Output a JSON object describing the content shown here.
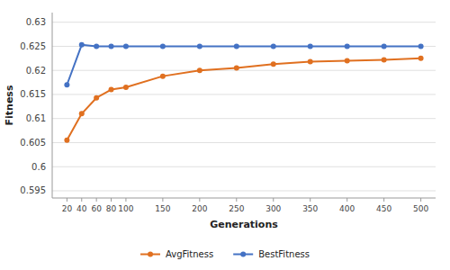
{
  "chart_data": {
    "type": "line",
    "x": [
      20,
      40,
      60,
      80,
      100,
      150,
      200,
      250,
      300,
      350,
      400,
      450,
      500
    ],
    "series": [
      {
        "name": "AvgFitness",
        "color": "#E07020",
        "marker": "circle",
        "values": [
          0.6055,
          0.611,
          0.6143,
          0.616,
          0.6165,
          0.6188,
          0.62,
          0.6205,
          0.6213,
          0.6218,
          0.622,
          0.6222,
          0.6225
        ]
      },
      {
        "name": "BestFitness",
        "color": "#4472C4",
        "marker": "circle",
        "values": [
          0.617,
          0.6253,
          0.625,
          0.625,
          0.625,
          0.625,
          0.625,
          0.625,
          0.625,
          0.625,
          0.625,
          0.625,
          0.625
        ]
      }
    ],
    "x_label": "Generations",
    "y_label": "Fitness",
    "xlim": [
      0,
      520
    ],
    "xticks": [
      20,
      40,
      60,
      80,
      100,
      150,
      200,
      250,
      300,
      350,
      400,
      450,
      500
    ],
    "ylim": [
      0.5935,
      0.632
    ],
    "yticks": [
      0.595,
      0.6,
      0.605,
      0.61,
      0.615,
      0.62,
      0.625,
      0.63
    ],
    "grid": "y",
    "legend": "bottom"
  }
}
